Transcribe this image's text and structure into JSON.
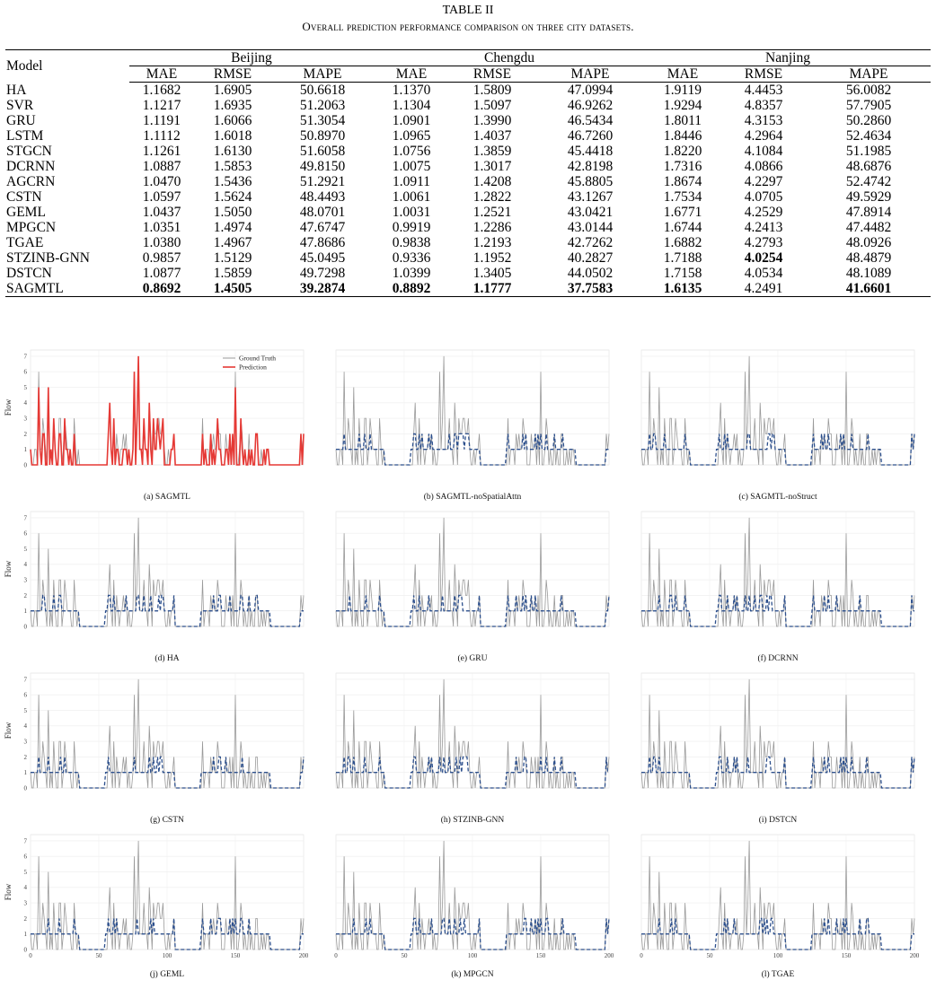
{
  "caption": {
    "label": "TABLE II",
    "title": "Overall prediction performance comparison on three city datasets."
  },
  "table": {
    "model_header": "Model",
    "cities": [
      "Beijing",
      "Chengdu",
      "Nanjing"
    ],
    "metrics": [
      "MAE",
      "RMSE",
      "MAPE"
    ],
    "rows": [
      {
        "model": "HA",
        "values": [
          "1.1682",
          "1.6905",
          "50.6618",
          "1.1370",
          "1.5809",
          "47.0994",
          "1.9119",
          "4.4453",
          "56.0082"
        ],
        "bold": []
      },
      {
        "model": "SVR",
        "values": [
          "1.1217",
          "1.6935",
          "51.2063",
          "1.1304",
          "1.5097",
          "46.9262",
          "1.9294",
          "4.8357",
          "57.7905"
        ],
        "bold": []
      },
      {
        "model": "GRU",
        "values": [
          "1.1191",
          "1.6066",
          "51.3054",
          "1.0901",
          "1.3990",
          "46.5434",
          "1.8011",
          "4.3153",
          "50.2860"
        ],
        "bold": []
      },
      {
        "model": "LSTM",
        "values": [
          "1.1112",
          "1.6018",
          "50.8970",
          "1.0965",
          "1.4037",
          "46.7260",
          "1.8446",
          "4.2964",
          "52.4634"
        ],
        "bold": []
      },
      {
        "model": "STGCN",
        "values": [
          "1.1261",
          "1.6130",
          "51.6058",
          "1.0756",
          "1.3859",
          "45.4418",
          "1.8220",
          "4.1084",
          "51.1985"
        ],
        "bold": []
      },
      {
        "model": "DCRNN",
        "values": [
          "1.0887",
          "1.5853",
          "49.8150",
          "1.0075",
          "1.3017",
          "42.8198",
          "1.7316",
          "4.0866",
          "48.6876"
        ],
        "bold": []
      },
      {
        "model": "AGCRN",
        "values": [
          "1.0470",
          "1.5436",
          "51.2921",
          "1.0911",
          "1.4208",
          "45.8805",
          "1.8674",
          "4.2297",
          "52.4742"
        ],
        "bold": []
      },
      {
        "model": "CSTN",
        "values": [
          "1.0597",
          "1.5624",
          "48.4493",
          "1.0061",
          "1.2822",
          "43.1267",
          "1.7534",
          "4.0705",
          "49.5929"
        ],
        "bold": []
      },
      {
        "model": "GEML",
        "values": [
          "1.0437",
          "1.5050",
          "48.0701",
          "1.0031",
          "1.2521",
          "43.0421",
          "1.6771",
          "4.2529",
          "47.8914"
        ],
        "bold": []
      },
      {
        "model": "MPGCN",
        "values": [
          "1.0351",
          "1.4974",
          "47.6747",
          "0.9919",
          "1.2286",
          "43.0144",
          "1.6744",
          "4.2413",
          "47.4482"
        ],
        "bold": []
      },
      {
        "model": "TGAE",
        "values": [
          "1.0380",
          "1.4967",
          "47.8686",
          "0.9838",
          "1.2193",
          "42.7262",
          "1.6882",
          "4.2793",
          "48.0926"
        ],
        "bold": []
      },
      {
        "model": "STZINB-GNN",
        "values": [
          "0.9857",
          "1.5129",
          "45.0495",
          "0.9336",
          "1.1952",
          "40.2827",
          "1.7188",
          "4.0254",
          "48.4879"
        ],
        "bold": [
          7
        ]
      },
      {
        "model": "DSTCN",
        "values": [
          "1.0877",
          "1.5859",
          "49.7298",
          "1.0399",
          "1.3405",
          "44.0502",
          "1.7158",
          "4.0534",
          "48.1089"
        ],
        "bold": []
      },
      {
        "model": "SAGMTL",
        "values": [
          "0.8692",
          "1.4505",
          "39.2874",
          "0.8892",
          "1.1777",
          "37.7583",
          "1.6135",
          "4.2491",
          "41.6601"
        ],
        "bold": [
          0,
          1,
          2,
          3,
          4,
          5,
          6,
          8
        ]
      }
    ]
  },
  "figure": {
    "ylabel": "Flow",
    "legend": {
      "ground_truth": "Ground Truth",
      "prediction": "Prediction"
    },
    "colors": {
      "ground_truth": "#9a9a9a",
      "prediction_solid": "#e53935",
      "prediction_dashed": "#2c4f8c"
    },
    "panels": [
      {
        "caption": "(a) SAGMTL",
        "style": "solid",
        "seed": 11
      },
      {
        "caption": "(b) SAGMTL-noSpatialAttn",
        "style": "dashed",
        "seed": 12
      },
      {
        "caption": "(c) SAGMTL-noStruct",
        "style": "dashed",
        "seed": 13
      },
      {
        "caption": "(d) HA",
        "style": "dashed",
        "seed": 14
      },
      {
        "caption": "(e) GRU",
        "style": "dashed",
        "seed": 15
      },
      {
        "caption": "(f) DCRNN",
        "style": "dashed",
        "seed": 16
      },
      {
        "caption": "(g) CSTN",
        "style": "dashed",
        "seed": 17
      },
      {
        "caption": "(h) STZINB-GNN",
        "style": "dashed",
        "seed": 18
      },
      {
        "caption": "(i) DSTCN",
        "style": "dashed",
        "seed": 19
      },
      {
        "caption": "(j) GEML",
        "style": "dashed",
        "seed": 20
      },
      {
        "caption": "(k) MPGCN",
        "style": "dashed",
        "seed": 21
      },
      {
        "caption": "(l) TGAE",
        "style": "dashed",
        "seed": 22
      }
    ],
    "xticks": [
      "0",
      "50",
      "100",
      "150",
      "200"
    ],
    "yticks": [
      "0",
      "1",
      "2",
      "3",
      "4",
      "5",
      "6",
      "7"
    ],
    "xlim": [
      0,
      200
    ],
    "ylim": [
      0,
      7.4
    ]
  }
}
